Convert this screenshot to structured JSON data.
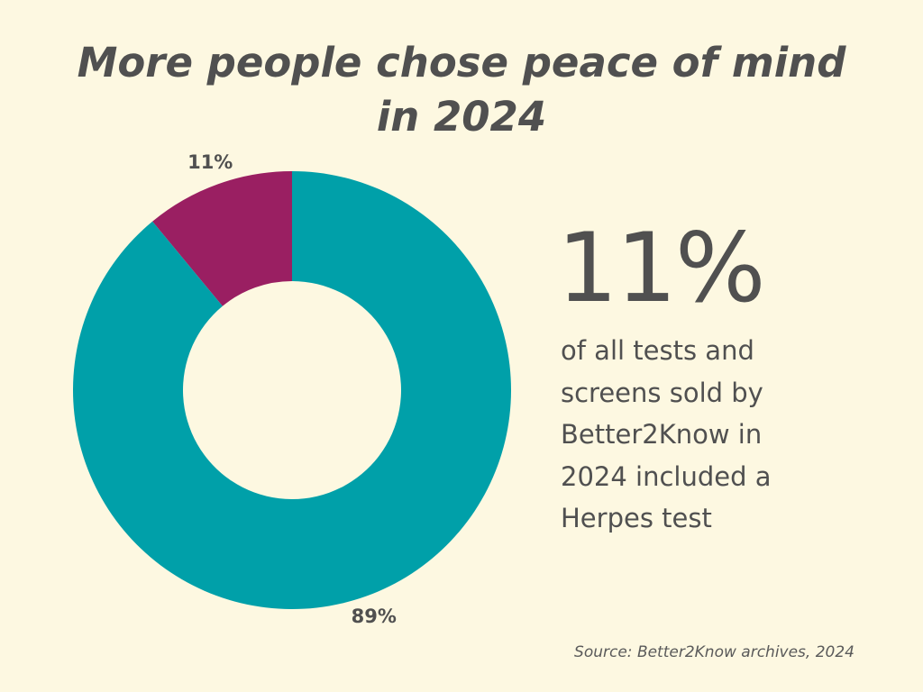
{
  "title_lines": [
    "More people chose peace of mind",
    "in 2024"
  ],
  "highlight": {
    "value": "11%",
    "description_lines": [
      "of all tests and",
      "screens sold by",
      "Better2Know in",
      "2024 included a",
      "Herpes test"
    ]
  },
  "source": "Source: Better2Know archives, 2024",
  "chart_data": {
    "type": "pie",
    "style": "donut",
    "title": "More people chose peace of mind in 2024",
    "slices": [
      {
        "value": 11,
        "label": "11%",
        "color": "#9a1f62"
      },
      {
        "value": 89,
        "label": "89%",
        "color": "#00a0a9"
      }
    ],
    "legend": "none"
  }
}
